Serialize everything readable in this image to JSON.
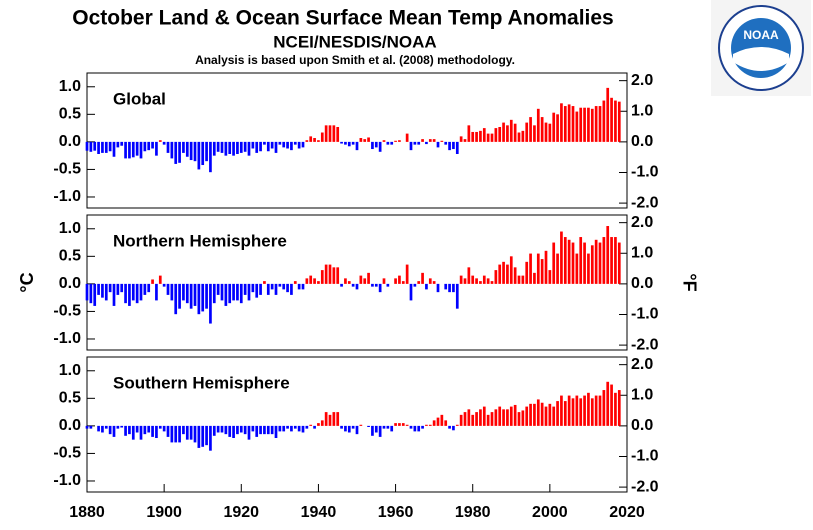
{
  "logo": {
    "label": "NOAA"
  },
  "chart_data": [
    {
      "type": "bar",
      "title": "October Land & Ocean Surface Mean Temp Anomalies",
      "subtitle": "NCEI/NESDIS/NOAA",
      "note": "Analysis is based upon Smith et al. (2008) methodology.",
      "annotation": "Global",
      "positive_color": "#ff0000",
      "negative_color": "#0000ff",
      "xlim": [
        1880,
        2020
      ],
      "ylim": [
        -1.2,
        1.25
      ],
      "y2lim": [
        -2.16,
        2.25
      ],
      "yticks": [
        {
          "value": 1,
          "label": "1.0"
        },
        {
          "value": 0.5,
          "label": "0.5"
        },
        {
          "value": 0,
          "label": "0.0"
        },
        {
          "value": -0.5,
          "label": "-0.5"
        },
        {
          "value": -1,
          "label": "-1.0"
        }
      ],
      "y2ticks": [
        {
          "value": 2,
          "label": "2.0"
        },
        {
          "value": 1,
          "label": "1.0"
        },
        {
          "value": 0,
          "label": "0.0"
        },
        {
          "value": -1,
          "label": "-1.0"
        },
        {
          "value": -2,
          "label": "-2.0"
        }
      ],
      "x": [
        1880,
        1881,
        1882,
        1883,
        1884,
        1885,
        1886,
        1887,
        1888,
        1889,
        1890,
        1891,
        1892,
        1893,
        1894,
        1895,
        1896,
        1897,
        1898,
        1899,
        1900,
        1901,
        1902,
        1903,
        1904,
        1905,
        1906,
        1907,
        1908,
        1909,
        1910,
        1911,
        1912,
        1913,
        1914,
        1915,
        1916,
        1917,
        1918,
        1919,
        1920,
        1921,
        1922,
        1923,
        1924,
        1925,
        1926,
        1927,
        1928,
        1929,
        1930,
        1931,
        1932,
        1933,
        1934,
        1935,
        1936,
        1937,
        1938,
        1939,
        1940,
        1941,
        1942,
        1943,
        1944,
        1945,
        1946,
        1947,
        1948,
        1949,
        1950,
        1951,
        1952,
        1953,
        1954,
        1955,
        1956,
        1957,
        1958,
        1959,
        1960,
        1961,
        1962,
        1963,
        1964,
        1965,
        1966,
        1967,
        1968,
        1969,
        1970,
        1971,
        1972,
        1973,
        1974,
        1975,
        1976,
        1977,
        1978,
        1979,
        1980,
        1981,
        1982,
        1983,
        1984,
        1985,
        1986,
        1987,
        1988,
        1989,
        1990,
        1991,
        1992,
        1993,
        1994,
        1995,
        1996,
        1997,
        1998,
        1999,
        2000,
        2001,
        2002,
        2003,
        2004,
        2005,
        2006,
        2007,
        2008,
        2009,
        2010,
        2011,
        2012,
        2013,
        2014,
        2015,
        2016,
        2017,
        2018
      ],
      "values": [
        -0.16,
        -0.18,
        -0.16,
        -0.22,
        -0.2,
        -0.2,
        -0.17,
        -0.27,
        -0.1,
        -0.07,
        -0.3,
        -0.3,
        -0.28,
        -0.25,
        -0.3,
        -0.17,
        -0.15,
        -0.12,
        -0.25,
        0.03,
        -0.05,
        -0.2,
        -0.3,
        -0.4,
        -0.38,
        -0.2,
        -0.27,
        -0.33,
        -0.35,
        -0.5,
        -0.42,
        -0.35,
        -0.55,
        -0.25,
        -0.18,
        -0.2,
        -0.25,
        -0.22,
        -0.25,
        -0.22,
        -0.2,
        -0.18,
        -0.25,
        -0.12,
        -0.2,
        -0.17,
        -0.05,
        -0.17,
        -0.12,
        -0.2,
        -0.05,
        -0.1,
        -0.12,
        -0.15,
        -0.05,
        -0.12,
        -0.1,
        0.03,
        0.1,
        0.07,
        0.03,
        0.17,
        0.3,
        0.3,
        0.3,
        0.27,
        -0.03,
        -0.05,
        -0.08,
        -0.05,
        -0.15,
        0.07,
        0.05,
        0.08,
        -0.13,
        -0.1,
        -0.18,
        0.03,
        -0.05,
        -0.05,
        0.02,
        0.03,
        0,
        0.15,
        -0.15,
        -0.05,
        -0.05,
        0.05,
        -0.04,
        0.05,
        0.05,
        -0.1,
        0.02,
        -0.05,
        -0.15,
        -0.13,
        -0.22,
        0.1,
        0.05,
        0.3,
        0.18,
        0.18,
        0.2,
        0.25,
        0.15,
        0.15,
        0.25,
        0.27,
        0.35,
        0.3,
        0.4,
        0.33,
        0.17,
        0.2,
        0.35,
        0.45,
        0.3,
        0.6,
        0.45,
        0.35,
        0.33,
        0.53,
        0.5,
        0.7,
        0.65,
        0.68,
        0.65,
        0.55,
        0.62,
        0.62,
        0.62,
        0.6,
        0.65,
        0.65,
        0.75,
        0.98,
        0.8,
        0.75,
        0.73
      ]
    },
    {
      "type": "bar",
      "annotation": "Northern Hemisphere",
      "ylabel": "°C",
      "y2label": "°F",
      "positive_color": "#ff0000",
      "negative_color": "#0000ff",
      "xlim": [
        1880,
        2020
      ],
      "ylim": [
        -1.2,
        1.25
      ],
      "y2lim": [
        -2.16,
        2.25
      ],
      "yticks": [
        {
          "value": 1,
          "label": "1.0"
        },
        {
          "value": 0.5,
          "label": "0.5"
        },
        {
          "value": 0,
          "label": "0.0"
        },
        {
          "value": -0.5,
          "label": "-0.5"
        },
        {
          "value": -1,
          "label": "-1.0"
        }
      ],
      "y2ticks": [
        {
          "value": 2,
          "label": "2.0"
        },
        {
          "value": 1,
          "label": "1.0"
        },
        {
          "value": 0,
          "label": "0.0"
        },
        {
          "value": -1,
          "label": "-1.0"
        },
        {
          "value": -2,
          "label": "-2.0"
        }
      ],
      "x": [
        1880,
        1881,
        1882,
        1883,
        1884,
        1885,
        1886,
        1887,
        1888,
        1889,
        1890,
        1891,
        1892,
        1893,
        1894,
        1895,
        1896,
        1897,
        1898,
        1899,
        1900,
        1901,
        1902,
        1903,
        1904,
        1905,
        1906,
        1907,
        1908,
        1909,
        1910,
        1911,
        1912,
        1913,
        1914,
        1915,
        1916,
        1917,
        1918,
        1919,
        1920,
        1921,
        1922,
        1923,
        1924,
        1925,
        1926,
        1927,
        1928,
        1929,
        1930,
        1931,
        1932,
        1933,
        1934,
        1935,
        1936,
        1937,
        1938,
        1939,
        1940,
        1941,
        1942,
        1943,
        1944,
        1945,
        1946,
        1947,
        1948,
        1949,
        1950,
        1951,
        1952,
        1953,
        1954,
        1955,
        1956,
        1957,
        1958,
        1959,
        1960,
        1961,
        1962,
        1963,
        1964,
        1965,
        1966,
        1967,
        1968,
        1969,
        1970,
        1971,
        1972,
        1973,
        1974,
        1975,
        1976,
        1977,
        1978,
        1979,
        1980,
        1981,
        1982,
        1983,
        1984,
        1985,
        1986,
        1987,
        1988,
        1989,
        1990,
        1991,
        1992,
        1993,
        1994,
        1995,
        1996,
        1997,
        1998,
        1999,
        2000,
        2001,
        2002,
        2003,
        2004,
        2005,
        2006,
        2007,
        2008,
        2009,
        2010,
        2011,
        2012,
        2013,
        2014,
        2015,
        2016,
        2017,
        2018
      ],
      "values": [
        -0.3,
        -0.35,
        -0.4,
        -0.2,
        -0.25,
        -0.3,
        -0.15,
        -0.4,
        -0.2,
        -0.15,
        -0.35,
        -0.4,
        -0.3,
        -0.35,
        -0.3,
        -0.2,
        -0.15,
        0.08,
        -0.3,
        0.15,
        -0.05,
        -0.2,
        -0.3,
        -0.55,
        -0.45,
        -0.3,
        -0.35,
        -0.45,
        -0.4,
        -0.55,
        -0.5,
        -0.45,
        -0.72,
        -0.35,
        -0.2,
        -0.3,
        -0.4,
        -0.35,
        -0.3,
        -0.3,
        -0.35,
        -0.2,
        -0.3,
        -0.15,
        -0.25,
        -0.2,
        0.05,
        -0.2,
        -0.1,
        -0.2,
        -0.05,
        -0.1,
        -0.15,
        -0.2,
        0.05,
        -0.1,
        -0.1,
        0.1,
        0.15,
        0.1,
        0.05,
        0.25,
        0.35,
        0.35,
        0.3,
        0.3,
        -0.05,
        0.1,
        0.05,
        -0.05,
        -0.1,
        0.15,
        0.1,
        0.2,
        -0.05,
        -0.05,
        -0.15,
        0.1,
        -0.05,
        0,
        0.1,
        0.15,
        0.05,
        0.35,
        -0.3,
        -0.05,
        0.05,
        0.2,
        -0.1,
        0.1,
        0.05,
        -0.15,
        0,
        -0.1,
        -0.15,
        -0.15,
        -0.45,
        0.15,
        0.1,
        0.3,
        0.15,
        0.1,
        0.05,
        0.15,
        0.1,
        0.05,
        0.25,
        0.35,
        0.4,
        0.35,
        0.5,
        0.3,
        0.15,
        0.15,
        0.4,
        0.55,
        0.2,
        0.55,
        0.45,
        0.6,
        0.25,
        0.75,
        0.55,
        0.95,
        0.85,
        0.8,
        0.75,
        0.55,
        0.85,
        0.75,
        0.55,
        0.7,
        0.8,
        0.75,
        0.85,
        1.05,
        0.85,
        0.85,
        0.75
      ]
    },
    {
      "type": "bar",
      "annotation": "Southern Hemisphere",
      "positive_color": "#ff0000",
      "negative_color": "#0000ff",
      "xlim": [
        1880,
        2020
      ],
      "ylim": [
        -1.2,
        1.25
      ],
      "y2lim": [
        -2.16,
        2.25
      ],
      "xticks": [
        1880,
        1900,
        1920,
        1940,
        1960,
        1980,
        2000,
        2020
      ],
      "yticks": [
        {
          "value": 1,
          "label": "1.0"
        },
        {
          "value": 0.5,
          "label": "0.5"
        },
        {
          "value": 0,
          "label": "0.0"
        },
        {
          "value": -0.5,
          "label": "-0.5"
        },
        {
          "value": -1,
          "label": "-1.0"
        }
      ],
      "y2ticks": [
        {
          "value": 2,
          "label": "2.0"
        },
        {
          "value": 1,
          "label": "1.0"
        },
        {
          "value": 0,
          "label": "0.0"
        },
        {
          "value": -1,
          "label": "-1.0"
        },
        {
          "value": -2,
          "label": "-2.0"
        }
      ],
      "x": [
        1880,
        1881,
        1882,
        1883,
        1884,
        1885,
        1886,
        1887,
        1888,
        1889,
        1890,
        1891,
        1892,
        1893,
        1894,
        1895,
        1896,
        1897,
        1898,
        1899,
        1900,
        1901,
        1902,
        1903,
        1904,
        1905,
        1906,
        1907,
        1908,
        1909,
        1910,
        1911,
        1912,
        1913,
        1914,
        1915,
        1916,
        1917,
        1918,
        1919,
        1920,
        1921,
        1922,
        1923,
        1924,
        1925,
        1926,
        1927,
        1928,
        1929,
        1930,
        1931,
        1932,
        1933,
        1934,
        1935,
        1936,
        1937,
        1938,
        1939,
        1940,
        1941,
        1942,
        1943,
        1944,
        1945,
        1946,
        1947,
        1948,
        1949,
        1950,
        1951,
        1952,
        1953,
        1954,
        1955,
        1956,
        1957,
        1958,
        1959,
        1960,
        1961,
        1962,
        1963,
        1964,
        1965,
        1966,
        1967,
        1968,
        1969,
        1970,
        1971,
        1972,
        1973,
        1974,
        1975,
        1976,
        1977,
        1978,
        1979,
        1980,
        1981,
        1982,
        1983,
        1984,
        1985,
        1986,
        1987,
        1988,
        1989,
        1990,
        1991,
        1992,
        1993,
        1994,
        1995,
        1996,
        1997,
        1998,
        1999,
        2000,
        2001,
        2002,
        2003,
        2004,
        2005,
        2006,
        2007,
        2008,
        2009,
        2010,
        2011,
        2012,
        2013,
        2014,
        2015,
        2016,
        2017,
        2018
      ],
      "values": [
        -0.05,
        -0.05,
        0,
        -0.1,
        -0.12,
        -0.05,
        -0.15,
        -0.2,
        -0.05,
        -0.03,
        -0.18,
        -0.15,
        -0.25,
        -0.12,
        -0.25,
        -0.15,
        -0.12,
        -0.2,
        -0.22,
        -0.05,
        -0.1,
        -0.2,
        -0.3,
        -0.3,
        -0.3,
        -0.15,
        -0.25,
        -0.25,
        -0.3,
        -0.4,
        -0.38,
        -0.35,
        -0.45,
        -0.18,
        -0.12,
        -0.12,
        -0.15,
        -0.2,
        -0.22,
        -0.15,
        -0.12,
        -0.15,
        -0.25,
        -0.1,
        -0.2,
        -0.15,
        -0.15,
        -0.15,
        -0.15,
        -0.22,
        -0.1,
        -0.1,
        -0.05,
        -0.1,
        -0.05,
        -0.1,
        -0.12,
        -0.05,
        0.02,
        -0.05,
        0.05,
        0.1,
        0.25,
        0.2,
        0.25,
        0.25,
        -0.05,
        -0.1,
        -0.12,
        -0.05,
        -0.15,
        0.02,
        0,
        -0.02,
        -0.18,
        -0.12,
        -0.2,
        -0.05,
        -0.05,
        -0.1,
        0.05,
        0.05,
        0.05,
        0.02,
        -0.05,
        -0.1,
        -0.1,
        -0.05,
        0.02,
        0.02,
        0.1,
        0.15,
        0.2,
        0.1,
        -0.05,
        -0.08,
        0.02,
        0.2,
        0.25,
        0.3,
        0.2,
        0.25,
        0.3,
        0.35,
        0.2,
        0.25,
        0.3,
        0.35,
        0.3,
        0.3,
        0.35,
        0.38,
        0.25,
        0.28,
        0.35,
        0.4,
        0.4,
        0.48,
        0.42,
        0.35,
        0.4,
        0.35,
        0.45,
        0.55,
        0.45,
        0.55,
        0.5,
        0.55,
        0.5,
        0.55,
        0.6,
        0.5,
        0.55,
        0.55,
        0.65,
        0.8,
        0.75,
        0.6,
        0.65
      ]
    }
  ]
}
